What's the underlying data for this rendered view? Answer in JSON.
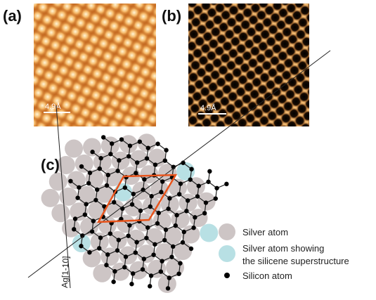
{
  "panels": {
    "a": "(a)",
    "b": "(b)",
    "c": "(c)"
  },
  "scale_bars": [
    "4.9Å",
    "4.9Å"
  ],
  "direction_label": "Ag[1-10]",
  "legend": {
    "items": [
      {
        "lines": [
          "Silver atom"
        ]
      },
      {
        "lines": [
          "Silver atom showing",
          "the silicene superstructure"
        ]
      },
      {
        "lines": [
          "Silicon atom"
        ]
      }
    ]
  }
}
